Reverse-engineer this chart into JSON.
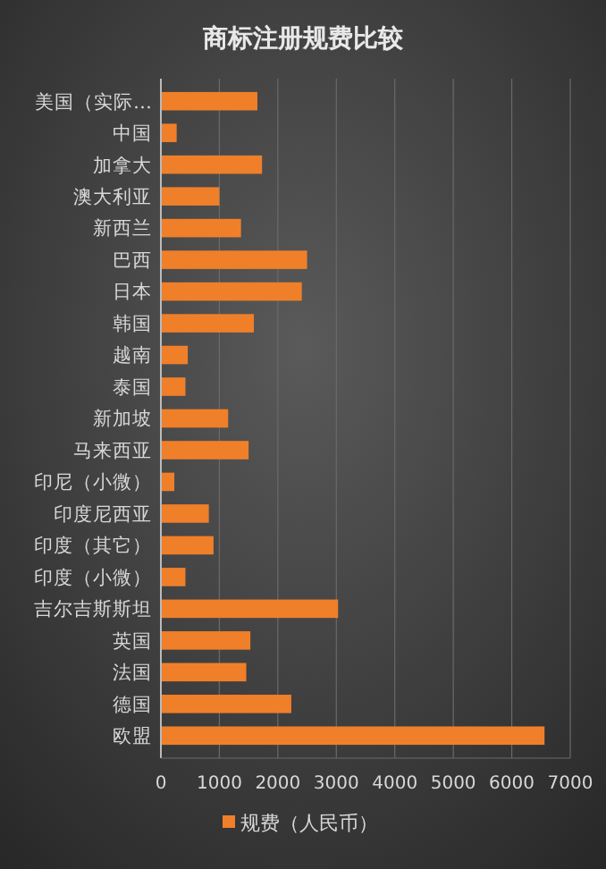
{
  "chart_data": {
    "type": "bar",
    "orientation": "horizontal",
    "title": "商标注册规费比较",
    "categories": [
      "美国（实际…",
      "中国",
      "加拿大",
      "澳大利亚",
      "新西兰",
      "巴西",
      "日本",
      "韩国",
      "越南",
      "泰国",
      "新加坡",
      "马来西亚",
      "印尼（小微）",
      "印度尼西亚",
      "印度（其它）",
      "印度（小微）",
      "吉尔吉斯斯坦",
      "英国",
      "法国",
      "德国",
      "欧盟"
    ],
    "series": [
      {
        "name": "规费（人民币）",
        "color": "#f07f2a",
        "values": [
          1650,
          270,
          1730,
          1000,
          1370,
          2500,
          2410,
          1590,
          460,
          420,
          1150,
          1500,
          230,
          820,
          900,
          420,
          3030,
          1530,
          1460,
          2230,
          6560
        ]
      }
    ],
    "xlim": [
      0,
      7000
    ],
    "xticks": [
      0,
      1000,
      2000,
      3000,
      4000,
      5000,
      6000,
      7000
    ],
    "grid": "x",
    "legend": "bottom"
  }
}
